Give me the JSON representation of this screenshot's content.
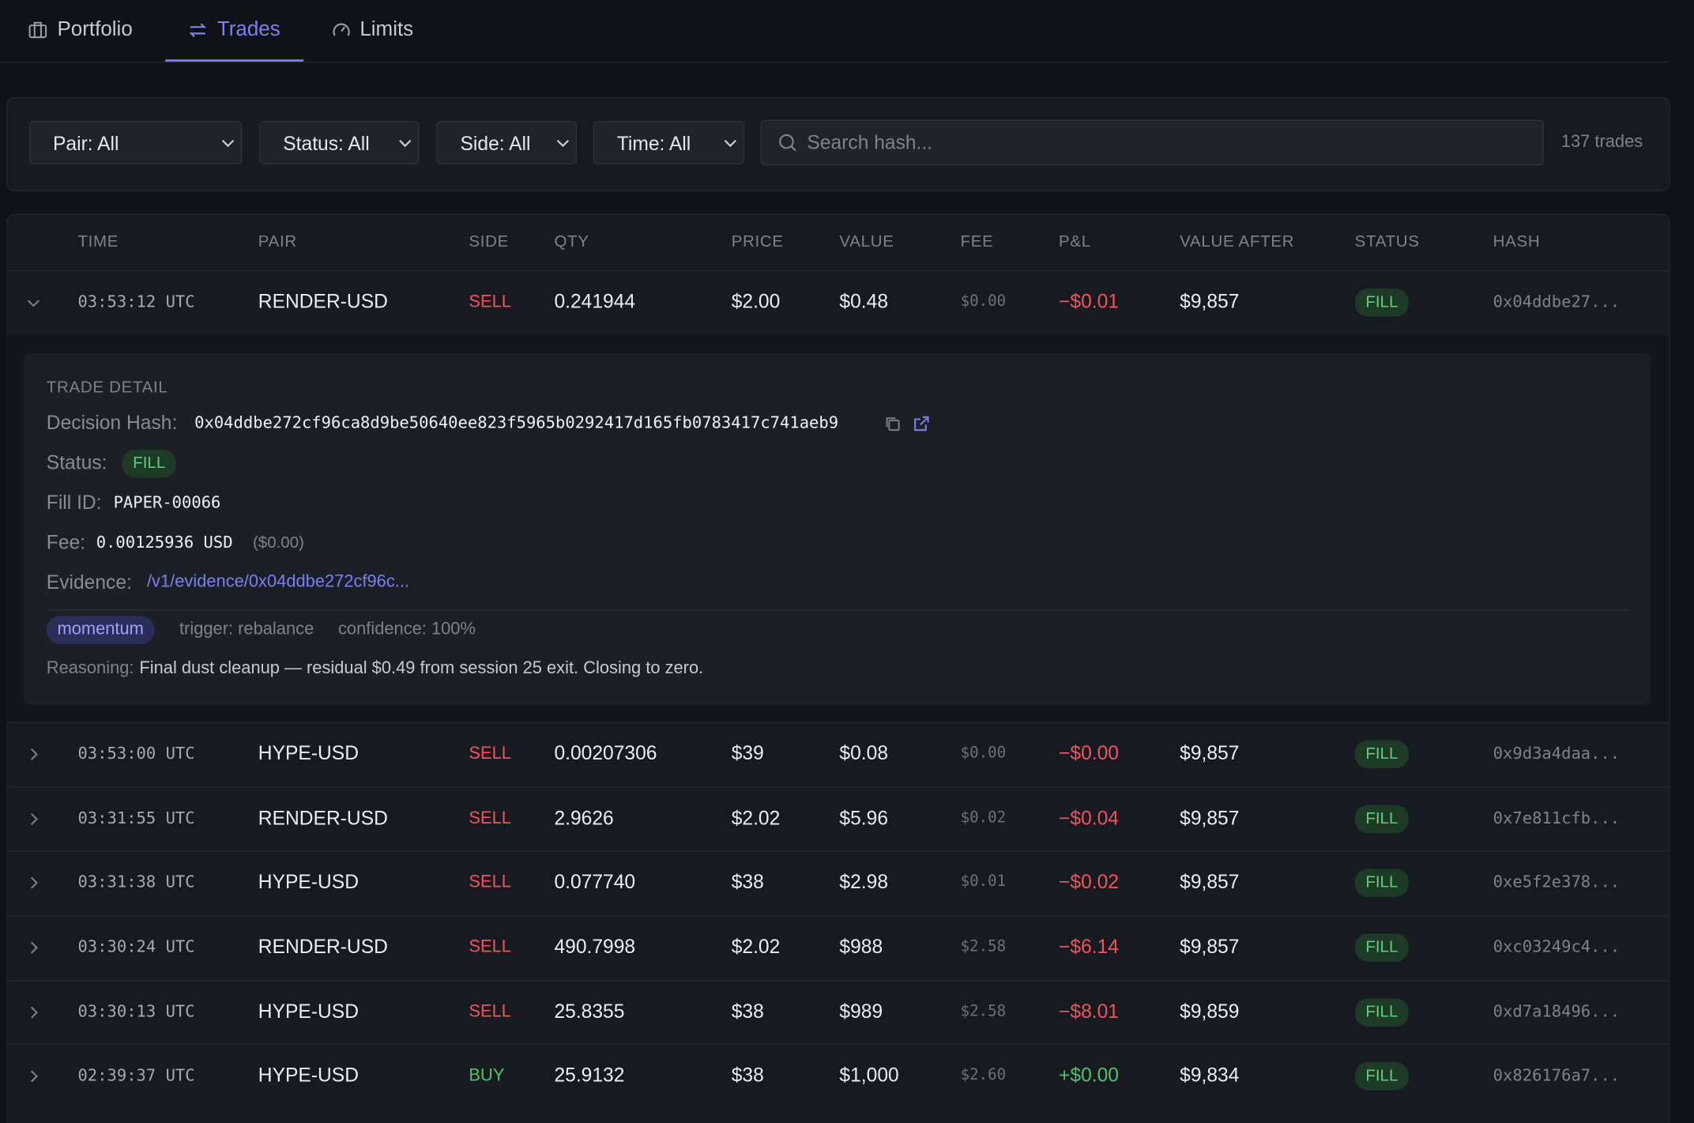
{
  "tabs": [
    "Portfolio",
    "Trades",
    "Limits"
  ],
  "filters": [
    "Pair: All",
    "Status: All",
    "Side: All",
    "Time: All"
  ],
  "search_placeholder": "Search hash...",
  "trade_count": "137 trades",
  "table": {
    "columns": [
      "TIME",
      "PAIR",
      "SIDE",
      "QTY",
      "PRICE",
      "VALUE",
      "FEE",
      "P&L",
      "VALUE AFTER",
      "STATUS",
      "HASH"
    ],
    "rows": [
      [
        "03:53:12 UTC",
        "RENDER-USD",
        "SELL",
        "0.241944",
        "$2.00",
        "$0.48",
        "$0.00",
        "−$0.01",
        "$9,857",
        "FILL",
        "0x04ddbe27..."
      ],
      [
        "03:53:00 UTC",
        "HYPE-USD",
        "SELL",
        "0.00207306",
        "$39",
        "$0.08",
        "$0.00",
        "−$0.00",
        "$9,857",
        "FILL",
        "0x9d3a4daa..."
      ],
      [
        "03:31:55 UTC",
        "RENDER-USD",
        "SELL",
        "2.9626",
        "$2.02",
        "$5.96",
        "$0.02",
        "−$0.04",
        "$9,857",
        "FILL",
        "0x7e811cfb..."
      ],
      [
        "03:31:38 UTC",
        "HYPE-USD",
        "SELL",
        "0.077740",
        "$38",
        "$2.98",
        "$0.01",
        "−$0.02",
        "$9,857",
        "FILL",
        "0xe5f2e378..."
      ],
      [
        "03:30:24 UTC",
        "RENDER-USD",
        "SELL",
        "490.7998",
        "$2.02",
        "$988",
        "$2.58",
        "−$6.14",
        "$9,857",
        "FILL",
        "0xc03249c4..."
      ],
      [
        "03:30:13 UTC",
        "HYPE-USD",
        "SELL",
        "25.8355",
        "$38",
        "$989",
        "$2.58",
        "−$8.01",
        "$9,859",
        "FILL",
        "0xd7a18496..."
      ],
      [
        "02:39:37 UTC",
        "HYPE-USD",
        "BUY",
        "25.9132",
        "$38",
        "$1,000",
        "$2.60",
        "+$0.00",
        "$9,834",
        "FILL",
        "0x826176a7..."
      ]
    ]
  },
  "detail": {
    "title": "TRADE DETAIL",
    "fields": [
      {
        "label": "Decision Hash:",
        "value": "0x04ddbe272cf96ca8d9be50640ee823f5965b0292417d165fb0783417c741aeb9"
      },
      {
        "label": "Status:",
        "value": "FILL"
      },
      {
        "label": "Fill ID:",
        "value": "PAPER-00066"
      },
      {
        "label": "Fee:",
        "value": "0.00125936 USD",
        "note": "($0.00)"
      },
      {
        "label": "Evidence:",
        "value": "/v1/evidence/0x04ddbe272cf96c..."
      }
    ],
    "tag": "momentum",
    "meta": [
      "trigger: rebalance",
      "confidence: 100%"
    ],
    "reasoning_label": "Reasoning:",
    "reasoning": "Final dust cleanup — residual $0.49 from session 25 exit. Closing to zero."
  }
}
